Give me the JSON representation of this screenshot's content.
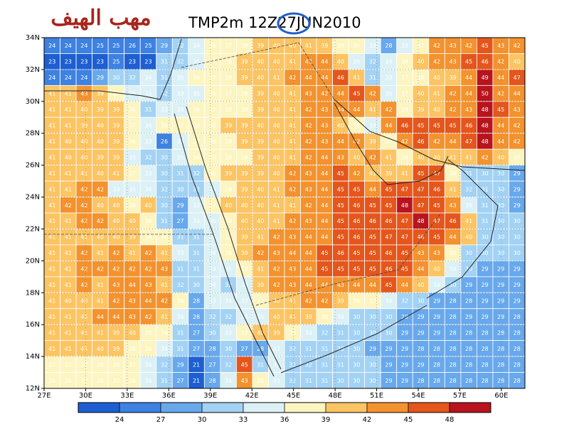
{
  "header": {
    "logo": "مهب الهيف",
    "title": "TMP2m 12Z27JUN2010"
  },
  "map": {
    "xlim": [
      27,
      61.7
    ],
    "ylim": [
      12,
      34
    ],
    "xticks": [
      {
        "value": 27,
        "label": "27E"
      },
      {
        "value": 30,
        "label": "30E"
      },
      {
        "value": 33,
        "label": "33E"
      },
      {
        "value": 36,
        "label": "36E"
      },
      {
        "value": 39,
        "label": "39E"
      },
      {
        "value": 42,
        "label": "42E"
      },
      {
        "value": 45,
        "label": "45E"
      },
      {
        "value": 48,
        "label": "48E"
      },
      {
        "value": 51,
        "label": "51E"
      },
      {
        "value": 54,
        "label": "54E"
      },
      {
        "value": 57,
        "label": "57E"
      },
      {
        "value": 60,
        "label": "60E"
      }
    ],
    "yticks": [
      {
        "value": 12,
        "label": "12N"
      },
      {
        "value": 14,
        "label": "14N"
      },
      {
        "value": 16,
        "label": "16N"
      },
      {
        "value": 18,
        "label": "18N"
      },
      {
        "value": 20,
        "label": "20N"
      },
      {
        "value": 22,
        "label": "22N"
      },
      {
        "value": 24,
        "label": "24N"
      },
      {
        "value": 26,
        "label": "26N"
      },
      {
        "value": 28,
        "label": "28N"
      },
      {
        "value": 30,
        "label": "30N"
      },
      {
        "value": 32,
        "label": "32N"
      },
      {
        "value": 34,
        "label": "34N"
      }
    ],
    "grid": [
      [
        24,
        24,
        24,
        25,
        25,
        26,
        25,
        29,
        32,
        34,
        36,
        37,
        38,
        39,
        40,
        40,
        41,
        39,
        38,
        36,
        33,
        28,
        33,
        37,
        42,
        43,
        42,
        45,
        43,
        42
      ],
      [
        23,
        23,
        23,
        23,
        25,
        23,
        23,
        31,
        32,
        35,
        37,
        38,
        39,
        40,
        40,
        41,
        43,
        44,
        40,
        35,
        32,
        34,
        38,
        40,
        42,
        43,
        45,
        46,
        42,
        40
      ],
      [
        24,
        24,
        24,
        29,
        30,
        32,
        34,
        31,
        35,
        36,
        37,
        38,
        39,
        40,
        41,
        42,
        44,
        44,
        46,
        41,
        31,
        33,
        37,
        38,
        40,
        39,
        44,
        49,
        44,
        47
      ],
      [
        41,
        41,
        43,
        39,
        37,
        35,
        33,
        32,
        33,
        35,
        36,
        37,
        38,
        39,
        40,
        41,
        43,
        42,
        44,
        45,
        42,
        35,
        37,
        40,
        41,
        42,
        44,
        50,
        42,
        44
      ],
      [
        41,
        41,
        40,
        39,
        39,
        36,
        31,
        33,
        35,
        36,
        37,
        38,
        38,
        39,
        40,
        41,
        42,
        43,
        44,
        44,
        41,
        42,
        38,
        39,
        40,
        42,
        43,
        48,
        45,
        43
      ],
      [
        41,
        41,
        39,
        40,
        39,
        37,
        34,
        36,
        37,
        38,
        38,
        39,
        39,
        40,
        40,
        41,
        42,
        43,
        40,
        38,
        33,
        44,
        46,
        45,
        45,
        45,
        46,
        48,
        44,
        42
      ],
      [
        41,
        40,
        40,
        40,
        39,
        36,
        33,
        26,
        35,
        37,
        38,
        38,
        39,
        39,
        40,
        41,
        42,
        43,
        44,
        42,
        39,
        37,
        42,
        46,
        42,
        44,
        47,
        48,
        44,
        42
      ],
      [
        41,
        40,
        40,
        39,
        39,
        35,
        32,
        30,
        35,
        36,
        38,
        38,
        38,
        39,
        40,
        41,
        42,
        44,
        43,
        40,
        42,
        41,
        38,
        40,
        40,
        41,
        41,
        42,
        40,
        38
      ],
      [
        41,
        41,
        41,
        40,
        41,
        37,
        33,
        30,
        31,
        32,
        36,
        39,
        39,
        39,
        40,
        42,
        43,
        44,
        45,
        42,
        41,
        39,
        41,
        45,
        47,
        36,
        31,
        30,
        30,
        29
      ],
      [
        41,
        41,
        42,
        42,
        33,
        35,
        34,
        32,
        30,
        32,
        35,
        38,
        39,
        40,
        41,
        42,
        43,
        44,
        45,
        45,
        44,
        45,
        47,
        47,
        46,
        41,
        32,
        31,
        30,
        29
      ],
      [
        41,
        42,
        42,
        40,
        40,
        38,
        40,
        30,
        29,
        33,
        37,
        40,
        40,
        40,
        41,
        41,
        42,
        44,
        45,
        46,
        45,
        45,
        48,
        47,
        45,
        43,
        35,
        31,
        30,
        29
      ],
      [
        41,
        41,
        42,
        42,
        40,
        40,
        36,
        31,
        27,
        33,
        35,
        38,
        40,
        40,
        41,
        42,
        43,
        44,
        45,
        46,
        46,
        46,
        47,
        48,
        47,
        46,
        41,
        31,
        30,
        30
      ],
      [
        41,
        41,
        41,
        40,
        40,
        39,
        38,
        38,
        31,
        31,
        35,
        37,
        39,
        41,
        42,
        43,
        44,
        44,
        45,
        46,
        45,
        47,
        47,
        46,
        45,
        44,
        40,
        30,
        30,
        30
      ],
      [
        41,
        41,
        42,
        41,
        42,
        41,
        42,
        41,
        33,
        31,
        34,
        36,
        39,
        42,
        43,
        44,
        44,
        45,
        46,
        45,
        45,
        46,
        45,
        43,
        43,
        38,
        30,
        30,
        30,
        30
      ],
      [
        41,
        41,
        42,
        42,
        42,
        42,
        42,
        43,
        31,
        31,
        33,
        35,
        38,
        41,
        42,
        43,
        44,
        45,
        45,
        45,
        45,
        46,
        45,
        44,
        40,
        34,
        30,
        29,
        29,
        29
      ],
      [
        41,
        41,
        42,
        41,
        43,
        44,
        43,
        41,
        32,
        30,
        34,
        32,
        35,
        39,
        42,
        43,
        44,
        44,
        43,
        44,
        44,
        45,
        44,
        40,
        34,
        30,
        29,
        29,
        29,
        29
      ],
      [
        41,
        40,
        40,
        41,
        42,
        43,
        44,
        42,
        36,
        28,
        33,
        34,
        33,
        37,
        40,
        41,
        42,
        42,
        39,
        36,
        37,
        34,
        32,
        30,
        29,
        28,
        28,
        29,
        29,
        29
      ],
      [
        41,
        41,
        41,
        44,
        44,
        43,
        42,
        41,
        34,
        28,
        32,
        32,
        34,
        35,
        40,
        41,
        39,
        38,
        34,
        30,
        30,
        30,
        29,
        29,
        29,
        28,
        29,
        29,
        29,
        28
      ],
      [
        41,
        41,
        41,
        41,
        39,
        40,
        38,
        36,
        31,
        27,
        30,
        33,
        37,
        40,
        39,
        36,
        34,
        32,
        31,
        30,
        30,
        30,
        29,
        29,
        29,
        28,
        28,
        28,
        28,
        28
      ],
      [
        41,
        41,
        41,
        40,
        39,
        38,
        36,
        34,
        31,
        27,
        28,
        30,
        27,
        28,
        33,
        32,
        31,
        31,
        30,
        30,
        29,
        29,
        29,
        28,
        28,
        28,
        28,
        28,
        28,
        28
      ],
      [
        37,
        37,
        37,
        38,
        38,
        37,
        34,
        32,
        29,
        21,
        27,
        32,
        45,
        31,
        33,
        32,
        32,
        31,
        31,
        30,
        30,
        29,
        29,
        29,
        28,
        28,
        28,
        28,
        28,
        28
      ],
      [
        36,
        36,
        37,
        38,
        37,
        36,
        34,
        31,
        27,
        21,
        28,
        34,
        43,
        38,
        33,
        32,
        31,
        31,
        30,
        30,
        30,
        29,
        29,
        28,
        28,
        28,
        28,
        28,
        28,
        28
      ]
    ]
  },
  "colorbar": {
    "clim": [
      21,
      51
    ],
    "ticks": [
      24,
      27,
      30,
      33,
      36,
      39,
      42,
      45,
      48
    ],
    "colors": [
      "#1d5fd2",
      "#3d82e2",
      "#68a8ec",
      "#a2d2f4",
      "#dbf1f6",
      "#fdf5c0",
      "#fcc462",
      "#f3922e",
      "#e4561c",
      "#b8141e"
    ]
  }
}
